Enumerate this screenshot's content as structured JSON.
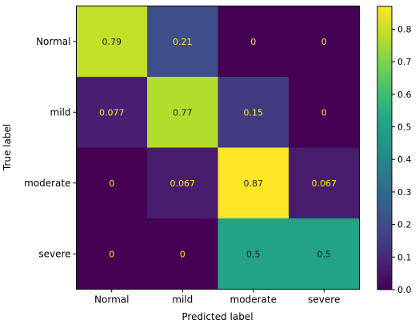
{
  "chart_data": {
    "type": "heatmap",
    "title": "",
    "xlabel": "Predicted label",
    "ylabel": "True label",
    "x_categories": [
      "Normal",
      "mild",
      "moderate",
      "severe"
    ],
    "y_categories": [
      "Normal",
      "mild",
      "moderate",
      "severe"
    ],
    "values": [
      [
        0.79,
        0.21,
        0,
        0
      ],
      [
        0.077,
        0.77,
        0.15,
        0
      ],
      [
        0,
        0.067,
        0.87,
        0.067
      ],
      [
        0,
        0,
        0.5,
        0.5
      ]
    ],
    "cell_labels": [
      [
        "0.79",
        "0.21",
        "0",
        "0"
      ],
      [
        "0.077",
        "0.77",
        "0.15",
        "0"
      ],
      [
        "0",
        "0.067",
        "0.87",
        "0.067"
      ],
      [
        "0",
        "0",
        "0.5",
        "0.5"
      ]
    ],
    "colormap": "viridis",
    "color_range": [
      0,
      0.87
    ],
    "colorbar_ticks": [
      "0.0",
      "0.1",
      "0.2",
      "0.3",
      "0.4",
      "0.5",
      "0.6",
      "0.7",
      "0.8"
    ],
    "colorbar_tick_values": [
      0,
      0.1,
      0.2,
      0.3,
      0.4,
      0.5,
      0.6,
      0.7,
      0.8
    ],
    "text_colors": {
      "on_dark": "#fde725",
      "on_light": "#1a1a1a"
    },
    "colorbar_position": "right",
    "grid": false
  }
}
